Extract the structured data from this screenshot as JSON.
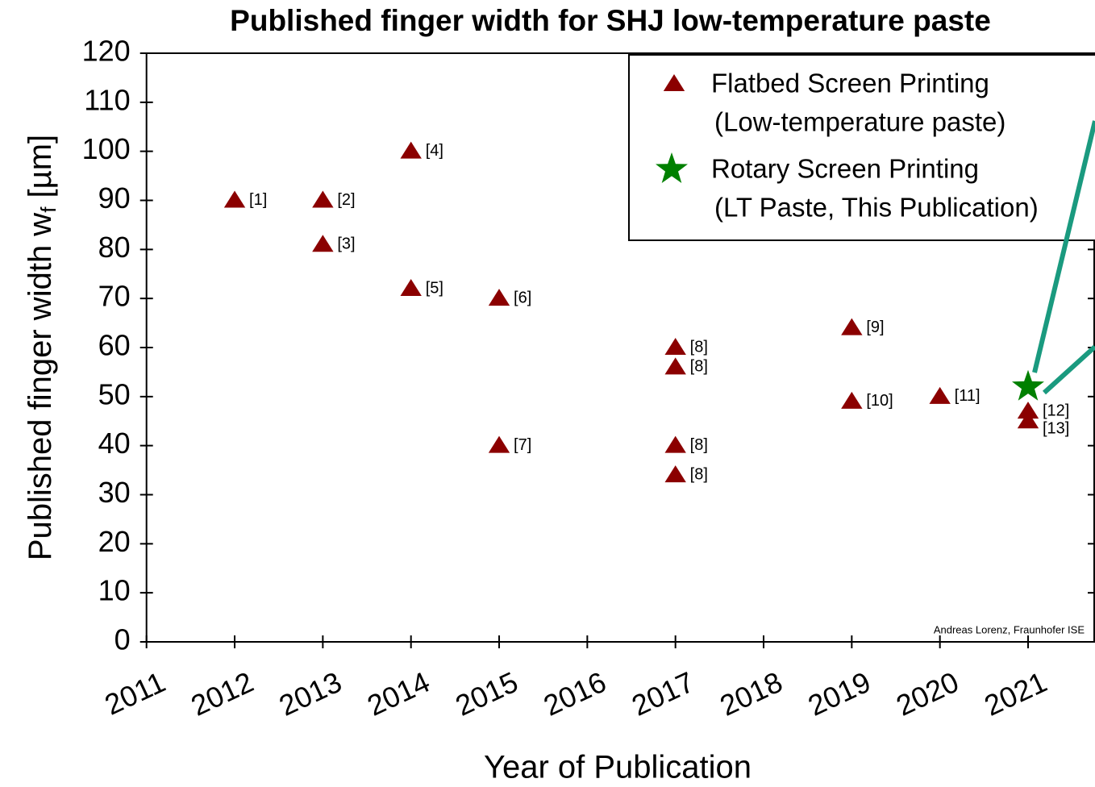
{
  "chart_data": {
    "type": "scatter",
    "title": "Published finger width for SHJ low-temperature paste",
    "xlabel": "Year of Publication",
    "ylabel": [
      "Published finger width w",
      "f",
      " [µm]"
    ],
    "xlim": [
      2011,
      2021.75
    ],
    "ylim": [
      0,
      120
    ],
    "xticks": [
      2011,
      2012,
      2013,
      2014,
      2015,
      2016,
      2017,
      2018,
      2019,
      2020,
      2021
    ],
    "yticks": [
      0,
      10,
      20,
      30,
      40,
      50,
      60,
      70,
      80,
      90,
      100,
      110,
      120
    ],
    "legend": "upper right",
    "series": [
      {
        "name": [
          "Flatbed Screen Printing",
          "(Low-temperature paste)"
        ],
        "color": "#8b0000",
        "marker": "triangle",
        "x": [
          2012,
          2013,
          2013,
          2014,
          2014,
          2015,
          2015,
          2017,
          2017,
          2017,
          2017,
          2019,
          2019,
          2020,
          2021,
          2021
        ],
        "values": [
          90,
          90,
          81,
          100,
          72,
          70,
          40,
          60,
          56,
          40,
          34,
          64,
          49,
          50,
          47,
          45
        ],
        "labels": [
          "[1]",
          "[2]",
          "[3]",
          "[4]",
          "[5]",
          "[6]",
          "[7]",
          "[8]",
          "[8]",
          "[8]",
          "[8]",
          "[9]",
          "[10]",
          "[11]",
          "[12]",
          "[13]"
        ]
      },
      {
        "name": [
          "Rotary Screen Printing",
          "(LT Paste, This Publication)"
        ],
        "color": "#008000",
        "marker": "star",
        "x": [
          2021
        ],
        "values": [
          52
        ]
      }
    ],
    "annotations": [
      "Andreas Lorenz, Fraunhofer ISE"
    ]
  }
}
